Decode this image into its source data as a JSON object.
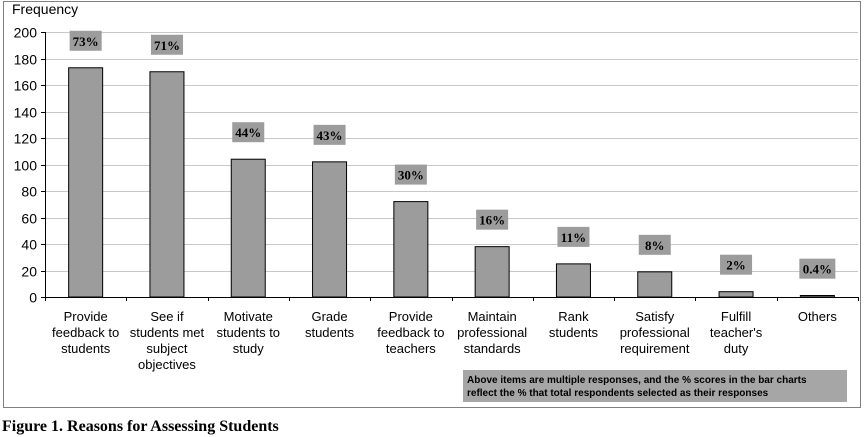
{
  "chart_data": {
    "type": "bar",
    "ylabel": "Frequency",
    "xlabel": "",
    "ylim": [
      0,
      200
    ],
    "yticks": [
      0,
      20,
      40,
      60,
      80,
      100,
      120,
      140,
      160,
      180,
      200
    ],
    "grid": true,
    "categories": [
      [
        "Provide",
        "feedback to",
        "students"
      ],
      [
        "See if",
        "students met",
        "subject",
        "objectives"
      ],
      [
        "Motivate",
        "students to",
        "study"
      ],
      [
        "Grade",
        "students"
      ],
      [
        "Provide",
        "feedback to",
        "teachers"
      ],
      [
        "Maintain",
        "professional",
        "standards"
      ],
      [
        "Rank",
        "students"
      ],
      [
        "Satisfy",
        "professional",
        "requirement"
      ],
      [
        "Fulfill",
        "teacher's",
        "duty"
      ],
      [
        "Others"
      ]
    ],
    "values": [
      173,
      170,
      104,
      102,
      72,
      38,
      25,
      19,
      4,
      1
    ],
    "percent_labels": [
      "73%",
      "71%",
      "44%",
      "43%",
      "30%",
      "16%",
      "11%",
      "8%",
      "2%",
      "0.4%"
    ],
    "note": [
      "Above items are multiple responses, and the % scores in the bar charts",
      "reflect the % that total respondents selected as their responses"
    ],
    "caption": "Figure 1.  Reasons for Assessing Students"
  }
}
